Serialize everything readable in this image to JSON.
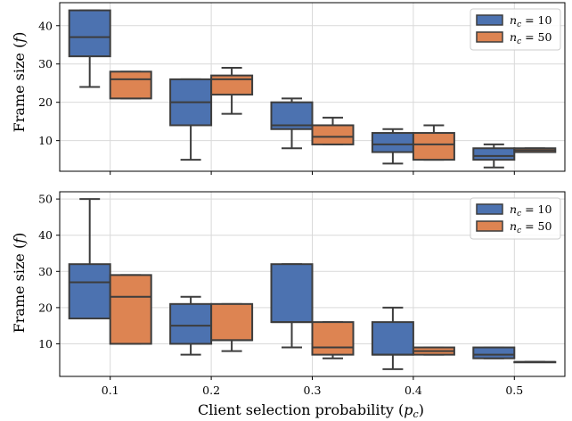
{
  "figure": {
    "xlabel": "Client selection probability (",
    "xlabel_sym": "p",
    "xlabel_sub": "c",
    "xlabel_close": ")",
    "ylabel": "Frame size (",
    "ylabel_sym": "f",
    "ylabel_close": ")"
  },
  "colors": {
    "n10": "#4c72b0",
    "n50": "#dd8452",
    "edge": "#3d3d3d",
    "grid": "#d9d9d9"
  },
  "chart_data": [
    {
      "type": "box",
      "panel": "top",
      "categories": [
        "0.1",
        "0.2",
        "0.3",
        "0.4",
        "0.5"
      ],
      "ylim": [
        2,
        46
      ],
      "yticks": [
        10,
        20,
        30,
        40
      ],
      "grid": true,
      "legend": "top-right",
      "series": [
        {
          "name_sym": "n",
          "name_sub": "c",
          "name_rest": " = 10",
          "stats": [
            {
              "min": 24,
              "q1": 32,
              "median": 37,
              "q3": 44,
              "max": 44
            },
            {
              "min": 5,
              "q1": 14,
              "median": 20,
              "q3": 26,
              "max": 26
            },
            {
              "min": 8,
              "q1": 13,
              "median": 14,
              "q3": 20,
              "max": 21
            },
            {
              "min": 4,
              "q1": 7,
              "median": 9,
              "q3": 12,
              "max": 13
            },
            {
              "min": 3,
              "q1": 5,
              "median": 6,
              "q3": 8,
              "max": 9
            }
          ]
        },
        {
          "name_sym": "n",
          "name_sub": "c",
          "name_rest": " = 50",
          "stats": [
            {
              "min": 21,
              "q1": 21,
              "median": 26,
              "q3": 28,
              "max": 28
            },
            {
              "min": 17,
              "q1": 22,
              "median": 26,
              "q3": 27,
              "max": 29
            },
            {
              "min": 9,
              "q1": 9,
              "median": 11,
              "q3": 14,
              "max": 16
            },
            {
              "min": 5,
              "q1": 5,
              "median": 9,
              "q3": 12,
              "max": 14
            },
            {
              "min": 7,
              "q1": 7,
              "median": 7.5,
              "q3": 8,
              "max": 8
            }
          ]
        }
      ]
    },
    {
      "type": "box",
      "panel": "bottom",
      "categories": [
        "0.1",
        "0.2",
        "0.3",
        "0.4",
        "0.5"
      ],
      "ylim": [
        1,
        52
      ],
      "yticks": [
        10,
        20,
        30,
        40,
        50
      ],
      "grid": true,
      "legend": "top-right",
      "series": [
        {
          "name_sym": "n",
          "name_sub": "c",
          "name_rest": " = 10",
          "stats": [
            {
              "min": 17,
              "q1": 17,
              "median": 27,
              "q3": 32,
              "max": 50
            },
            {
              "min": 7,
              "q1": 10,
              "median": 15,
              "q3": 21,
              "max": 23
            },
            {
              "min": 9,
              "q1": 16,
              "median": 16,
              "q3": 32,
              "max": 32
            },
            {
              "min": 3,
              "q1": 7,
              "median": 7,
              "q3": 16,
              "max": 20
            },
            {
              "min": 6,
              "q1": 6,
              "median": 7,
              "q3": 9,
              "max": 9
            }
          ]
        },
        {
          "name_sym": "n",
          "name_sub": "c",
          "name_rest": " = 50",
          "stats": [
            {
              "min": 10,
              "q1": 10,
              "median": 23,
              "q3": 29,
              "max": 29
            },
            {
              "min": 8,
              "q1": 11,
              "median": 11,
              "q3": 21,
              "max": 21
            },
            {
              "min": 6,
              "q1": 7,
              "median": 9,
              "q3": 16,
              "max": 16
            },
            {
              "min": 7,
              "q1": 7,
              "median": 8,
              "q3": 9,
              "max": 9
            },
            {
              "min": 5,
              "q1": 5,
              "median": 5,
              "q3": 5,
              "max": 5
            }
          ]
        }
      ]
    }
  ]
}
